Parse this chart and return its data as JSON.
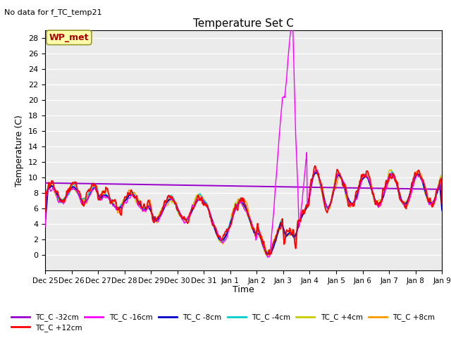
{
  "title": "Temperature Set C",
  "subtitle": "No data for f_TC_temp21",
  "xlabel": "Time",
  "ylabel": "Temperature (C)",
  "ylim": [
    -2,
    29
  ],
  "yticks": [
    0,
    2,
    4,
    6,
    8,
    10,
    12,
    14,
    16,
    18,
    20,
    22,
    24,
    26,
    28
  ],
  "x_labels": [
    "Dec 25",
    "Dec 26",
    "Dec 27",
    "Dec 28",
    "Dec 29",
    "Dec 30",
    "Dec 31",
    "Jan 1",
    "Jan 2",
    "Jan 3",
    "Jan 4",
    "Jan 5",
    "Jan 6",
    "Jan 7",
    "Jan 8",
    "Jan 9"
  ],
  "wp_met_label": "WP_met",
  "legend_entries": [
    {
      "label": "TC_C -32cm",
      "color": "#9900cc"
    },
    {
      "label": "TC_C -16cm",
      "color": "#ff00ff"
    },
    {
      "label": "TC_C -8cm",
      "color": "#0000cc"
    },
    {
      "label": "TC_C -4cm",
      "color": "#00cccc"
    },
    {
      "label": "TC_C +4cm",
      "color": "#cccc00"
    },
    {
      "label": "TC_C +8cm",
      "color": "#ff9900"
    },
    {
      "label": "TC_C +12cm",
      "color": "#ff0000"
    }
  ],
  "bg_color": "#ffffff",
  "plot_bg": "#ebebeb"
}
